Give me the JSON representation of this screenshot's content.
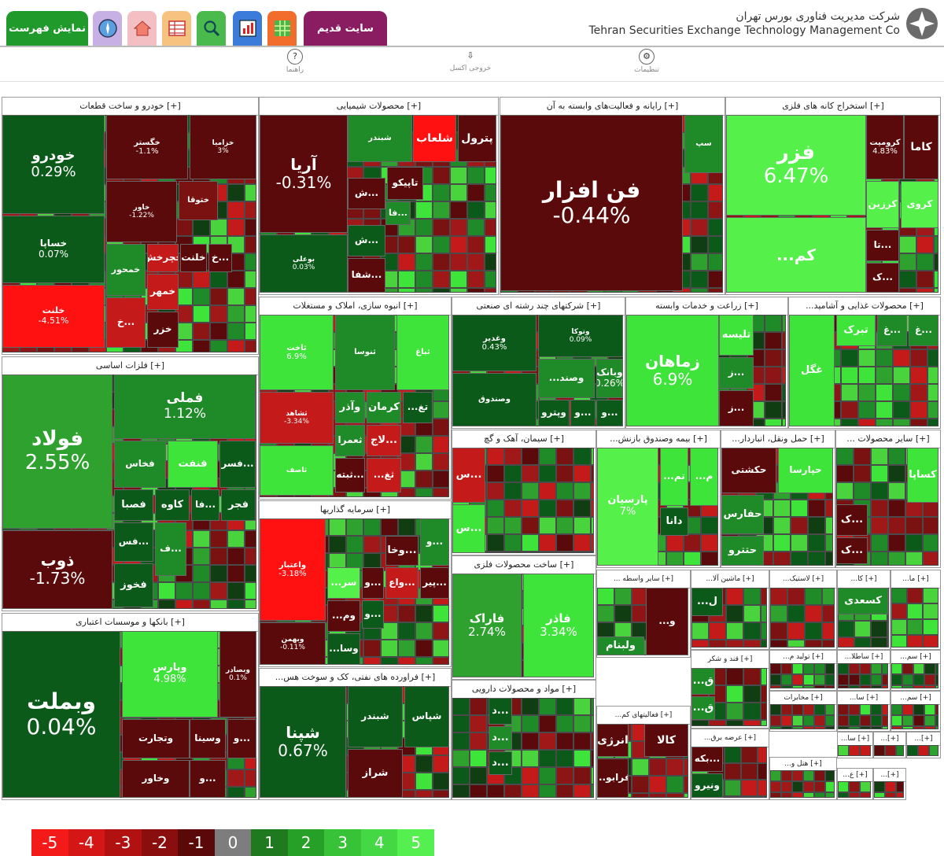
{
  "header": {
    "show_index_label": "نمایش فهرست",
    "old_site_label": "سایت قدیم",
    "company_fa": "شرکت مدیریت فناوری بورس تهران",
    "company_en": "Tehran Securities Exchange Technology Management Co",
    "icons": [
      "compass-icon",
      "home-icon",
      "table-icon",
      "search-icon",
      "chart-icon",
      "grid-icon"
    ]
  },
  "toolbar": {
    "help_label": "راهنما",
    "export_label": "خروجی اکسل",
    "settings_label": "تنظیمات"
  },
  "sectors": [
    {
      "id": "auto",
      "title": "خودرو و ساخت قطعات [+]",
      "tiles": [
        {
          "name": "خودرو",
          "value": "0.29%"
        },
        {
          "name": "خساپا",
          "value": "0.07%"
        },
        {
          "name": "خلنت",
          "value": "-4.51%"
        },
        {
          "name": "خگستر",
          "value": "-1.1%"
        },
        {
          "name": "خزامیا",
          "value": "3%"
        },
        {
          "name": "خاور",
          "value": "-1.22%"
        },
        {
          "name": "خمحور",
          "value": ""
        },
        {
          "name": "خچرخش",
          "value": ""
        },
        {
          "name": "خلنت",
          "value": ""
        },
        {
          "name": "خ...",
          "value": ""
        },
        {
          "name": "خ...",
          "value": ""
        },
        {
          "name": "خمهر",
          "value": ""
        },
        {
          "name": "خزر",
          "value": ""
        },
        {
          "name": "ختوقا",
          "value": ""
        }
      ]
    },
    {
      "id": "chem",
      "title": "محصولات شیمیایی [+]",
      "tiles": [
        {
          "name": "آریا",
          "value": "-0.31%"
        },
        {
          "name": "بوعلی",
          "value": "0.03%"
        },
        {
          "name": "پترول",
          "value": ""
        },
        {
          "name": "شلعاب",
          "value": ""
        },
        {
          "name": "شبندر",
          "value": ""
        },
        {
          "name": "تاپیکو",
          "value": ""
        },
        {
          "name": "ش...",
          "value": ""
        },
        {
          "name": "فا...",
          "value": ""
        },
        {
          "name": "ش...",
          "value": ""
        },
        {
          "name": "شفا...",
          "value": ""
        }
      ]
    },
    {
      "id": "comp",
      "title": "رایانه و فعالیت‌های وابسته به آن [+]",
      "tiles": [
        {
          "name": "فن افزار",
          "value": "-0.44%"
        },
        {
          "name": "سپ",
          "value": ""
        }
      ]
    },
    {
      "id": "metalmine",
      "title": "استخراج کانه های فلزی [+]",
      "tiles": [
        {
          "name": "فزر",
          "value": "6.47%"
        },
        {
          "name": "کرومیت",
          "value": "4.83%"
        },
        {
          "name": "کاما",
          "value": ""
        },
        {
          "name": "کرزین",
          "value": ""
        },
        {
          "name": "کروی",
          "value": ""
        },
        {
          "name": "...کم",
          "value": ""
        },
        {
          "name": "تا...",
          "value": ""
        },
        {
          "name": "ک...",
          "value": ""
        }
      ]
    },
    {
      "id": "basemetal",
      "title": "فلزات اساسی [+]",
      "tiles": [
        {
          "name": "فولاد",
          "value": "2.55%"
        },
        {
          "name": "فملی",
          "value": "1.12%"
        },
        {
          "name": "ذوب",
          "value": "-1.73%"
        },
        {
          "name": "فخاس",
          "value": ""
        },
        {
          "name": "فنفت",
          "value": ""
        },
        {
          "name": "فسر...",
          "value": ""
        },
        {
          "name": "فصبا",
          "value": ""
        },
        {
          "name": "کاوه",
          "value": ""
        },
        {
          "name": "فا...",
          "value": ""
        },
        {
          "name": "فجر",
          "value": ""
        },
        {
          "name": "فس...",
          "value": ""
        },
        {
          "name": "فخوز",
          "value": ""
        },
        {
          "name": "ف...",
          "value": ""
        }
      ]
    },
    {
      "id": "bank",
      "title": "بانکها و موسسات اعتباری [+]",
      "tiles": [
        {
          "name": "وبملت",
          "value": "0.04%"
        },
        {
          "name": "وپارس",
          "value": "4.98%"
        },
        {
          "name": "وبصادر",
          "value": "0.1%"
        },
        {
          "name": "وتجارت",
          "value": ""
        },
        {
          "name": "وسینا",
          "value": ""
        },
        {
          "name": "و...",
          "value": ""
        },
        {
          "name": "وخاور",
          "value": ""
        },
        {
          "name": "و...",
          "value": ""
        }
      ]
    },
    {
      "id": "mass",
      "title": "انبوه سازی، املاک و مستغلات [+]",
      "tiles": [
        {
          "name": "ثاخت",
          "value": "6.9%"
        },
        {
          "name": "ثشاهد",
          "value": "-3.34%"
        },
        {
          "name": "وآذر",
          "value": ""
        },
        {
          "name": "کرمان",
          "value": ""
        },
        {
          "name": "...تغ",
          "value": ""
        },
        {
          "name": "ثعمرا",
          "value": ""
        },
        {
          "name": "لاج...",
          "value": ""
        },
        {
          "name": "...ثغ",
          "value": ""
        },
        {
          "name": "ثبته...",
          "value": ""
        },
        {
          "name": "ثاصف",
          "value": ""
        },
        {
          "name": "ثنوسا",
          "value": ""
        },
        {
          "name": "ثباغ",
          "value": ""
        }
      ]
    },
    {
      "id": "multi",
      "title": "شرکتهای چند رشته ای صنعتی [+]",
      "tiles": [
        {
          "name": "وغدیر",
          "value": "0.43%"
        },
        {
          "name": "وصندوق",
          "value": ""
        },
        {
          "name": "وتوکا",
          "value": "0.09%"
        },
        {
          "name": "وبانک",
          "value": "0.26%"
        },
        {
          "name": "...وصند",
          "value": ""
        },
        {
          "name": "و...",
          "value": ""
        },
        {
          "name": "و...",
          "value": ""
        },
        {
          "name": "وپترو",
          "value": ""
        }
      ]
    },
    {
      "id": "agri",
      "title": "زراعت و خدمات وابسته [+]",
      "tiles": [
        {
          "name": "زماهان",
          "value": "6.9%"
        },
        {
          "name": "تلیسه",
          "value": ""
        },
        {
          "name": "ز...",
          "value": ""
        },
        {
          "name": "ز...",
          "value": ""
        }
      ]
    },
    {
      "id": "food",
      "title": "...محصولات غذایی و آشامید [+]",
      "tiles": [
        {
          "name": "غگل",
          "value": ""
        },
        {
          "name": "تبرک",
          "value": ""
        },
        {
          "name": "غ...",
          "value": ""
        },
        {
          "name": "غ...",
          "value": ""
        },
        {
          "name": "غدام",
          "value": ""
        }
      ]
    },
    {
      "id": "cement",
      "title": "سیمان، آهک و گچ [+]",
      "tiles": [
        {
          "name": "س...",
          "value": ""
        },
        {
          "name": "س...",
          "value": ""
        }
      ]
    },
    {
      "id": "insure",
      "title": "...بیمه وصندوق بازنش [+]",
      "tiles": [
        {
          "name": "پارسیان",
          "value": "7%"
        },
        {
          "name": "دانا",
          "value": ""
        },
        {
          "name": "...م",
          "value": ""
        },
        {
          "name": "...تم",
          "value": ""
        }
      ]
    },
    {
      "id": "trans",
      "title": "...حمل ونقل، انباردار [+]",
      "tiles": [
        {
          "name": "حفارس",
          "value": ""
        },
        {
          "name": "حتترو",
          "value": ""
        },
        {
          "name": "حکشتی",
          "value": ""
        },
        {
          "name": "حپارسا",
          "value": ""
        }
      ]
    },
    {
      "id": "other",
      "title": "... سایر محصولات [+]",
      "tiles": [
        {
          "name": "کساپا",
          "value": ""
        },
        {
          "name": "ک...",
          "value": ""
        },
        {
          "name": "ک...",
          "value": ""
        }
      ]
    },
    {
      "id": "invest",
      "title": "سرمایه گذاریها [+]",
      "tiles": [
        {
          "name": "واعتبار",
          "value": "-3.18%"
        },
        {
          "name": "وخا...",
          "value": ""
        },
        {
          "name": "و...",
          "value": ""
        },
        {
          "name": "...سر",
          "value": ""
        },
        {
          "name": "و...",
          "value": ""
        },
        {
          "name": "واع...",
          "value": ""
        },
        {
          "name": "وبهمن",
          "value": "-0.11%"
        },
        {
          "name": "...وم",
          "value": ""
        },
        {
          "name": "...وسا",
          "value": ""
        },
        {
          "name": "پیر...",
          "value": ""
        },
        {
          "name": "و...",
          "value": ""
        }
      ]
    },
    {
      "id": "metalprod",
      "title": "ساخت محصولات فلزی [+]",
      "tiles": [
        {
          "name": "فاراک",
          "value": "2.74%"
        },
        {
          "name": "فاذر",
          "value": "3.34%"
        }
      ]
    },
    {
      "id": "oil",
      "title": "...فراورده های نفتی، کک و سوخت هس [+]",
      "tiles": [
        {
          "name": "شپنا",
          "value": "0.67%"
        },
        {
          "name": "شراز",
          "value": ""
        },
        {
          "name": "شبندر",
          "value": ""
        },
        {
          "name": "شپاس",
          "value": ""
        }
      ]
    },
    {
      "id": "pharma",
      "title": "مواد و محصولات دارویی [+]",
      "tiles": [
        {
          "name": "د...",
          "value": ""
        },
        {
          "name": "د...",
          "value": ""
        },
        {
          "name": "د...",
          "value": ""
        }
      ]
    },
    {
      "id": "misc",
      "title": "... سایر واسطه [+]",
      "tiles": [
        {
          "name": "ولبنام",
          "value": ""
        },
        {
          "name": "...و",
          "value": ""
        }
      ]
    },
    {
      "id": "mach",
      "title": "...ماشین آلا [+]",
      "tiles": [
        {
          "name": "...ل",
          "value": ""
        }
      ]
    },
    {
      "id": "rubber",
      "title": "...لاستیک [+]",
      "tiles": []
    },
    {
      "id": "ka",
      "title": "...کا [+]",
      "tiles": [
        {
          "name": "کسعدی",
          "value": ""
        }
      ]
    },
    {
      "id": "ma",
      "title": "...ما [+]",
      "tiles": []
    },
    {
      "id": "sugar",
      "title": "قند و شکر [+]",
      "tiles": [
        {
          "name": "...ق",
          "value": ""
        },
        {
          "name": "...ق",
          "value": ""
        }
      ]
    },
    {
      "id": "power",
      "title": "...فعالیتهای کم [+]",
      "tiles": [
        {
          "name": "انرژی",
          "value": ""
        },
        {
          "name": "کالا",
          "value": ""
        },
        {
          "name": "...فرابو",
          "value": ""
        }
      ]
    },
    {
      "id": "prod",
      "title": "...تولید م [+]",
      "tiles": []
    },
    {
      "id": "satela",
      "title": "...ساطلا [+]",
      "tiles": []
    },
    {
      "id": "samm",
      "title": "...سم [+]",
      "tiles": []
    },
    {
      "id": "telecom",
      "title": "مخابرات [+]",
      "tiles": []
    },
    {
      "id": "elec",
      "title": "...عرضه برق [+]",
      "tiles": [
        {
          "name": "بکه...",
          "value": ""
        },
        {
          "name": "ونیرو",
          "value": ""
        }
      ]
    },
    {
      "id": "sas",
      "title": "...سا [+]",
      "tiles": []
    },
    {
      "id": "sam",
      "title": "...سم [+]",
      "tiles": []
    },
    {
      "id": "hotel",
      "title": "...هتل و [+]",
      "tiles": []
    },
    {
      "id": "t1",
      "title": "...سا [+]",
      "tiles": []
    },
    {
      "id": "t2",
      "title": "...[+]",
      "tiles": []
    },
    {
      "id": "t3",
      "title": "...[+]",
      "tiles": []
    },
    {
      "id": "t4",
      "title": "...ع [+]",
      "tiles": []
    },
    {
      "id": "t5",
      "title": "...[+]",
      "tiles": []
    }
  ],
  "legend": [
    "-5",
    "-4",
    "-3",
    "-2",
    "-1",
    "0",
    "1",
    "2",
    "3",
    "4",
    "5"
  ],
  "colors": {
    "darkred": "#5a0a0a",
    "red": "#c41a1a",
    "brightred": "#f11",
    "maroon": "#7a1212",
    "darkgreen": "#0c5a1a",
    "green": "#1f8a28",
    "brightgreen": "#3fe43a",
    "lime": "#55f04a",
    "gray": "#8a8a8a",
    "tab_green": "#239a2b",
    "tab_purple": "#8a1c62"
  }
}
